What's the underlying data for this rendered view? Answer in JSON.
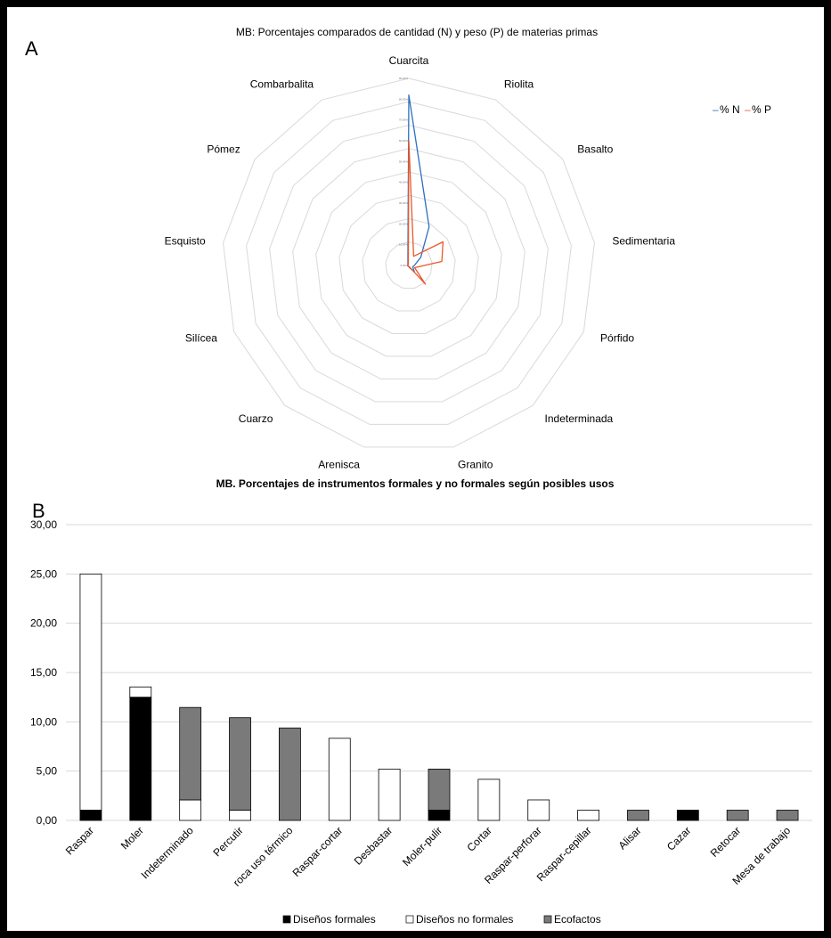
{
  "panel_a": {
    "letter": "A",
    "legend_marker": "–",
    "colors": {
      "n": "#2e6fbf",
      "p": "#e8582c",
      "grid": "#d9d9d9"
    }
  },
  "panel_b": {
    "letter": "B",
    "colors": {
      "formales": "#000000",
      "no_formales": "#ffffff",
      "ecofactos": "#7a7a7a",
      "grid": "#d9d9d9"
    }
  },
  "chart_data": [
    {
      "type": "radar",
      "title": "MB: Porcentajes comparados de cantidad (N) y peso (P) de materias primas",
      "categories": [
        "Cuarcita",
        "Riolita",
        "Basalto",
        "Sedimentaria",
        "Pórfido",
        "Indeterminada",
        "Granito",
        "Arenisca",
        "Cuarzo",
        "Silícea",
        "Esquisto",
        "Pómez",
        "Combarbalita"
      ],
      "r_max": 90,
      "ring_count": 8,
      "tick_labels": [
        "0,00%",
        "10,00%",
        "20,00%",
        "30,00%",
        "40,00%",
        "50,00%",
        "60,00%",
        "70,00%",
        "80,00%",
        "90,00%"
      ],
      "legend_position": "top-right",
      "series": [
        {
          "name": "% N",
          "values": [
            82,
            21,
            7,
            3,
            2,
            4,
            1,
            0.5,
            0.5,
            0.5,
            0.5,
            0.5,
            1
          ]
        },
        {
          "name": "% P",
          "values": [
            60,
            5,
            20,
            16,
            3,
            12,
            0.5,
            0.5,
            0.5,
            0.5,
            0.5,
            0.5,
            0.5
          ]
        }
      ]
    },
    {
      "type": "bar",
      "stacked": true,
      "title": "MB. Porcentajes de instrumentos formales y no formales según posibles usos",
      "categories": [
        "Raspar",
        "Moler",
        "Indeterminado",
        "Percutir",
        "roca uso térmico",
        "Raspar-cortar",
        "Desbastar",
        "Moler-pulir",
        "Cortar",
        "Raspar-perforar",
        "Raspar-cepillar",
        "Alisar",
        "Cazar",
        "Retocar",
        "Mesa de trabajo"
      ],
      "y_ticks": [
        "0,00",
        "5,00",
        "10,00",
        "15,00",
        "20,00",
        "25,00",
        "30,00"
      ],
      "ylim": [
        0,
        30
      ],
      "grid": true,
      "legend_position": "bottom",
      "series": [
        {
          "name": "Diseños formales",
          "values": [
            1.04,
            12.5,
            0,
            0,
            0,
            0,
            0,
            1.04,
            0,
            0,
            0,
            0,
            1.04,
            0,
            0
          ]
        },
        {
          "name": "Diseños no formales",
          "values": [
            23.96,
            1.04,
            2.08,
            1.04,
            0,
            8.33,
            5.21,
            0,
            4.17,
            2.08,
            1.04,
            0,
            0,
            0,
            0
          ]
        },
        {
          "name": "Ecofactos",
          "values": [
            0,
            0,
            9.38,
            9.38,
            9.38,
            0,
            0,
            4.17,
            0,
            0,
            0,
            1.04,
            0,
            1.04,
            1.04
          ]
        }
      ]
    }
  ]
}
